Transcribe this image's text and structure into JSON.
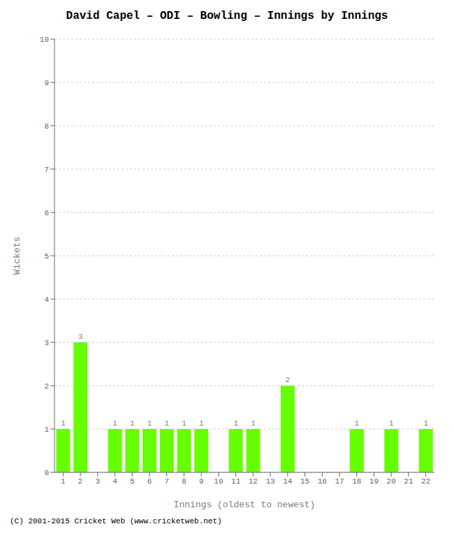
{
  "chart_data": {
    "type": "bar",
    "title": "David Capel – ODI – Bowling – Innings by Innings",
    "xlabel": "Innings (oldest to newest)",
    "ylabel": "Wickets",
    "annotations": [
      "(C) 2001-2015 Cricket Web (www.cricketweb.net)"
    ],
    "categories": [
      "1",
      "2",
      "3",
      "4",
      "5",
      "6",
      "7",
      "8",
      "9",
      "10",
      "11",
      "12",
      "13",
      "14",
      "15",
      "16",
      "17",
      "18",
      "19",
      "20",
      "21",
      "22"
    ],
    "values": [
      1,
      3,
      0,
      1,
      1,
      1,
      1,
      1,
      1,
      0,
      1,
      1,
      0,
      2,
      0,
      0,
      0,
      1,
      0,
      1,
      0,
      1
    ],
    "color": "#66ff00",
    "ylim": [
      0,
      10
    ],
    "yticks": [
      0,
      1,
      2,
      3,
      4,
      5,
      6,
      7,
      8,
      9,
      10
    ],
    "grid": true,
    "data_labels": true
  }
}
